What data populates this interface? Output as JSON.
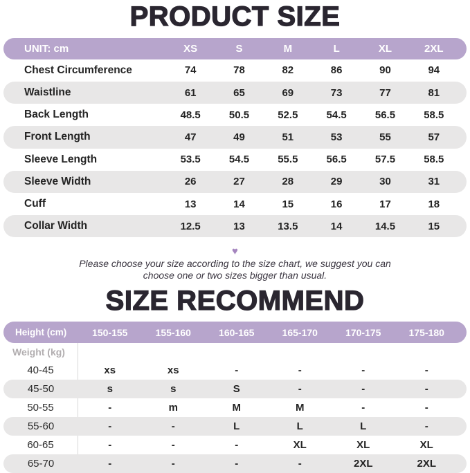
{
  "titles": {
    "product_size": "PRODUCT SIZE",
    "size_recommend": "SIZE RECOMMEND"
  },
  "note": {
    "line1": "Please choose your size according to the size chart, we suggest you can",
    "line2": "choose one or two sizes bigger than usual."
  },
  "icons": {
    "heart": "♥"
  },
  "colors": {
    "header_purple": "#b7a5cc",
    "row_gray": "#e8e7e7",
    "heart_purple": "#a484be",
    "weight_label_gray": "#b2aeb0",
    "title_ink": "#2a2630",
    "divider_gray": "#d8d8d8"
  },
  "chart_data": [
    {
      "type": "table",
      "title": "PRODUCT SIZE",
      "unit": "cm",
      "header_label": "UNIT: cm",
      "columns": [
        "XS",
        "S",
        "M",
        "L",
        "XL",
        "2XL"
      ],
      "rows": [
        {
          "label": "Chest Circumference",
          "values": [
            "74",
            "78",
            "82",
            "86",
            "90",
            "94"
          ]
        },
        {
          "label": "Waistline",
          "values": [
            "61",
            "65",
            "69",
            "73",
            "77",
            "81"
          ]
        },
        {
          "label": "Back Length",
          "values": [
            "48.5",
            "50.5",
            "52.5",
            "54.5",
            "56.5",
            "58.5"
          ]
        },
        {
          "label": "Front Length",
          "values": [
            "47",
            "49",
            "51",
            "53",
            "55",
            "57"
          ]
        },
        {
          "label": "Sleeve Length",
          "values": [
            "53.5",
            "54.5",
            "55.5",
            "56.5",
            "57.5",
            "58.5"
          ]
        },
        {
          "label": "Sleeve Width",
          "values": [
            "26",
            "27",
            "28",
            "29",
            "30",
            "31"
          ]
        },
        {
          "label": "Cuff",
          "values": [
            "13",
            "14",
            "15",
            "16",
            "17",
            "18"
          ]
        },
        {
          "label": "Collar Width",
          "values": [
            "12.5",
            "13",
            "13.5",
            "14",
            "14.5",
            "15"
          ]
        }
      ]
    },
    {
      "type": "table",
      "title": "SIZE RECOMMEND",
      "header_label": "Height (cm)",
      "row_axis_label": "Weight (kg)",
      "columns": [
        "150-155",
        "155-160",
        "160-165",
        "165-170",
        "170-175",
        "175-180"
      ],
      "rows": [
        {
          "label": "40-45",
          "values": [
            "xs",
            "xs",
            "-",
            "-",
            "-",
            "-"
          ]
        },
        {
          "label": "45-50",
          "values": [
            "s",
            "s",
            "S",
            "-",
            "-",
            "-"
          ]
        },
        {
          "label": "50-55",
          "values": [
            "-",
            "m",
            "M",
            "M",
            "-",
            "-"
          ]
        },
        {
          "label": "55-60",
          "values": [
            "-",
            "-",
            "L",
            "L",
            "L",
            "-"
          ]
        },
        {
          "label": "60-65",
          "values": [
            "-",
            "-",
            "-",
            "XL",
            "XL",
            "XL"
          ]
        },
        {
          "label": "65-70",
          "values": [
            "-",
            "-",
            "-",
            "-",
            "2XL",
            "2XL"
          ]
        }
      ]
    }
  ]
}
